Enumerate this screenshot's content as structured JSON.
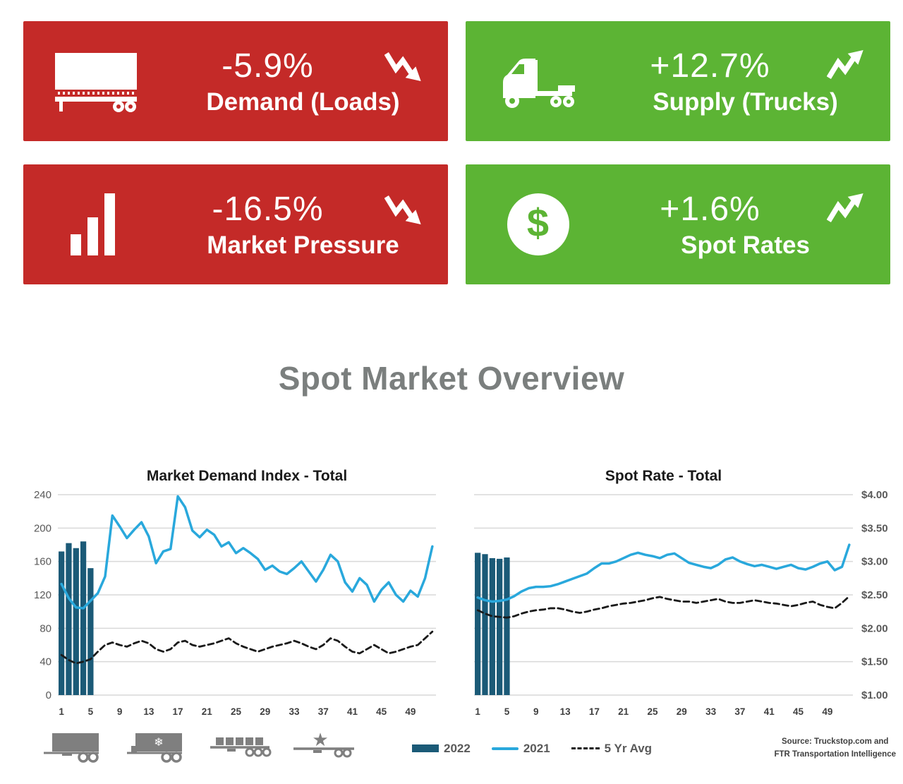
{
  "cards": [
    {
      "value": "-5.9%",
      "label": "Demand (Loads)",
      "color": "#c42a28",
      "trend": "down"
    },
    {
      "value": "+12.7%",
      "label": "Supply (Trucks)",
      "color": "#5cb434",
      "trend": "up"
    },
    {
      "value": "-16.5%",
      "label": "Market Pressure",
      "color": "#c42a28",
      "trend": "down"
    },
    {
      "value": "+1.6%",
      "label": "Spot Rates",
      "color": "#5cb434",
      "trend": "up"
    }
  ],
  "section_title": "Spot Market Overview",
  "colors": {
    "bar_2022": "#1b5a77",
    "line_2021": "#29a8dc",
    "line_5yr": "#1a1a1a",
    "gridline": "#d9d9d9",
    "card_red": "#c42a28",
    "card_green": "#5cb434",
    "title_gray": "#7b7f7e"
  },
  "chart_data": [
    {
      "type": "bar",
      "title": "Market Demand Index - Total",
      "weeks": 52,
      "x_ticks": [
        1,
        5,
        9,
        13,
        17,
        21,
        25,
        29,
        33,
        37,
        41,
        45,
        49
      ],
      "ylim": [
        0,
        240
      ],
      "y_axis_side": "left",
      "y_ticks": {
        "values": [
          0,
          40,
          80,
          120,
          160,
          200,
          240
        ],
        "labels": [
          "0",
          "40",
          "80",
          "120",
          "160",
          "200",
          "240"
        ]
      },
      "series": [
        {
          "name": "2022",
          "type": "bar",
          "color": "#1b5a77",
          "values": [
            172,
            182,
            176,
            184,
            152
          ]
        },
        {
          "name": "2021",
          "type": "line",
          "color": "#29a8dc",
          "values": [
            133,
            116,
            105,
            104,
            113,
            122,
            142,
            215,
            202,
            188,
            198,
            207,
            190,
            158,
            172,
            175,
            238,
            225,
            197,
            189,
            198,
            192,
            178,
            183,
            170,
            176,
            170,
            163,
            150,
            155,
            148,
            145,
            152,
            160,
            148,
            136,
            150,
            168,
            160,
            135,
            124,
            140,
            132,
            112,
            126,
            135,
            120,
            112,
            125,
            118,
            140,
            178
          ]
        },
        {
          "name": "5 Yr Avg",
          "type": "dashed-line",
          "color": "#1a1a1a",
          "values": [
            48,
            42,
            38,
            40,
            43,
            52,
            60,
            63,
            60,
            58,
            62,
            65,
            62,
            55,
            52,
            55,
            63,
            65,
            60,
            58,
            60,
            62,
            65,
            68,
            62,
            58,
            55,
            52,
            55,
            58,
            60,
            62,
            65,
            62,
            58,
            55,
            60,
            68,
            65,
            58,
            52,
            50,
            55,
            60,
            55,
            50,
            52,
            55,
            58,
            60,
            68,
            76
          ]
        }
      ]
    },
    {
      "type": "bar",
      "title": "Spot Rate - Total",
      "weeks": 52,
      "x_ticks": [
        1,
        5,
        9,
        13,
        17,
        21,
        25,
        29,
        33,
        37,
        41,
        45,
        49
      ],
      "ylim": [
        1.0,
        4.0
      ],
      "y_axis_side": "right",
      "y_ticks": {
        "values": [
          1.0,
          1.5,
          2.0,
          2.5,
          3.0,
          3.5,
          4.0
        ],
        "labels": [
          "$1.00",
          "$1.50",
          "$2.00",
          "$2.50",
          "$3.00",
          "$3.50",
          "$4.00"
        ]
      },
      "series": [
        {
          "name": "2022",
          "type": "bar",
          "color": "#1b5a77",
          "values": [
            3.13,
            3.11,
            3.05,
            3.04,
            3.06
          ]
        },
        {
          "name": "2021",
          "type": "line",
          "color": "#29a8dc",
          "values": [
            2.46,
            2.42,
            2.4,
            2.41,
            2.43,
            2.48,
            2.55,
            2.6,
            2.62,
            2.62,
            2.63,
            2.66,
            2.7,
            2.74,
            2.78,
            2.82,
            2.9,
            2.97,
            2.97,
            3.0,
            3.05,
            3.1,
            3.13,
            3.1,
            3.08,
            3.05,
            3.1,
            3.12,
            3.05,
            2.98,
            2.95,
            2.92,
            2.9,
            2.95,
            3.03,
            3.06,
            3.0,
            2.96,
            2.93,
            2.95,
            2.92,
            2.89,
            2.92,
            2.95,
            2.9,
            2.88,
            2.92,
            2.97,
            3.0,
            2.87,
            2.92,
            3.25
          ]
        },
        {
          "name": "5 Yr Avg",
          "type": "dashed-line",
          "color": "#1a1a1a",
          "values": [
            2.27,
            2.22,
            2.18,
            2.17,
            2.16,
            2.18,
            2.22,
            2.25,
            2.27,
            2.28,
            2.3,
            2.3,
            2.28,
            2.25,
            2.23,
            2.25,
            2.28,
            2.3,
            2.33,
            2.35,
            2.37,
            2.38,
            2.4,
            2.42,
            2.45,
            2.47,
            2.44,
            2.42,
            2.4,
            2.4,
            2.38,
            2.4,
            2.42,
            2.44,
            2.4,
            2.38,
            2.38,
            2.4,
            2.42,
            2.4,
            2.38,
            2.37,
            2.35,
            2.33,
            2.35,
            2.38,
            2.4,
            2.35,
            2.32,
            2.3,
            2.38,
            2.48
          ]
        }
      ]
    }
  ],
  "legend": [
    {
      "label": "2022"
    },
    {
      "label": "2021"
    },
    {
      "label": "5 Yr Avg"
    }
  ],
  "equipment_icons": [
    {
      "name": "dry-van-icon"
    },
    {
      "name": "reefer-icon"
    },
    {
      "name": "flatbed-icon"
    },
    {
      "name": "specialized-icon"
    }
  ],
  "source": {
    "line1": "Source: Truckstop.com and",
    "line2": "FTR Transportation Intelligence"
  }
}
